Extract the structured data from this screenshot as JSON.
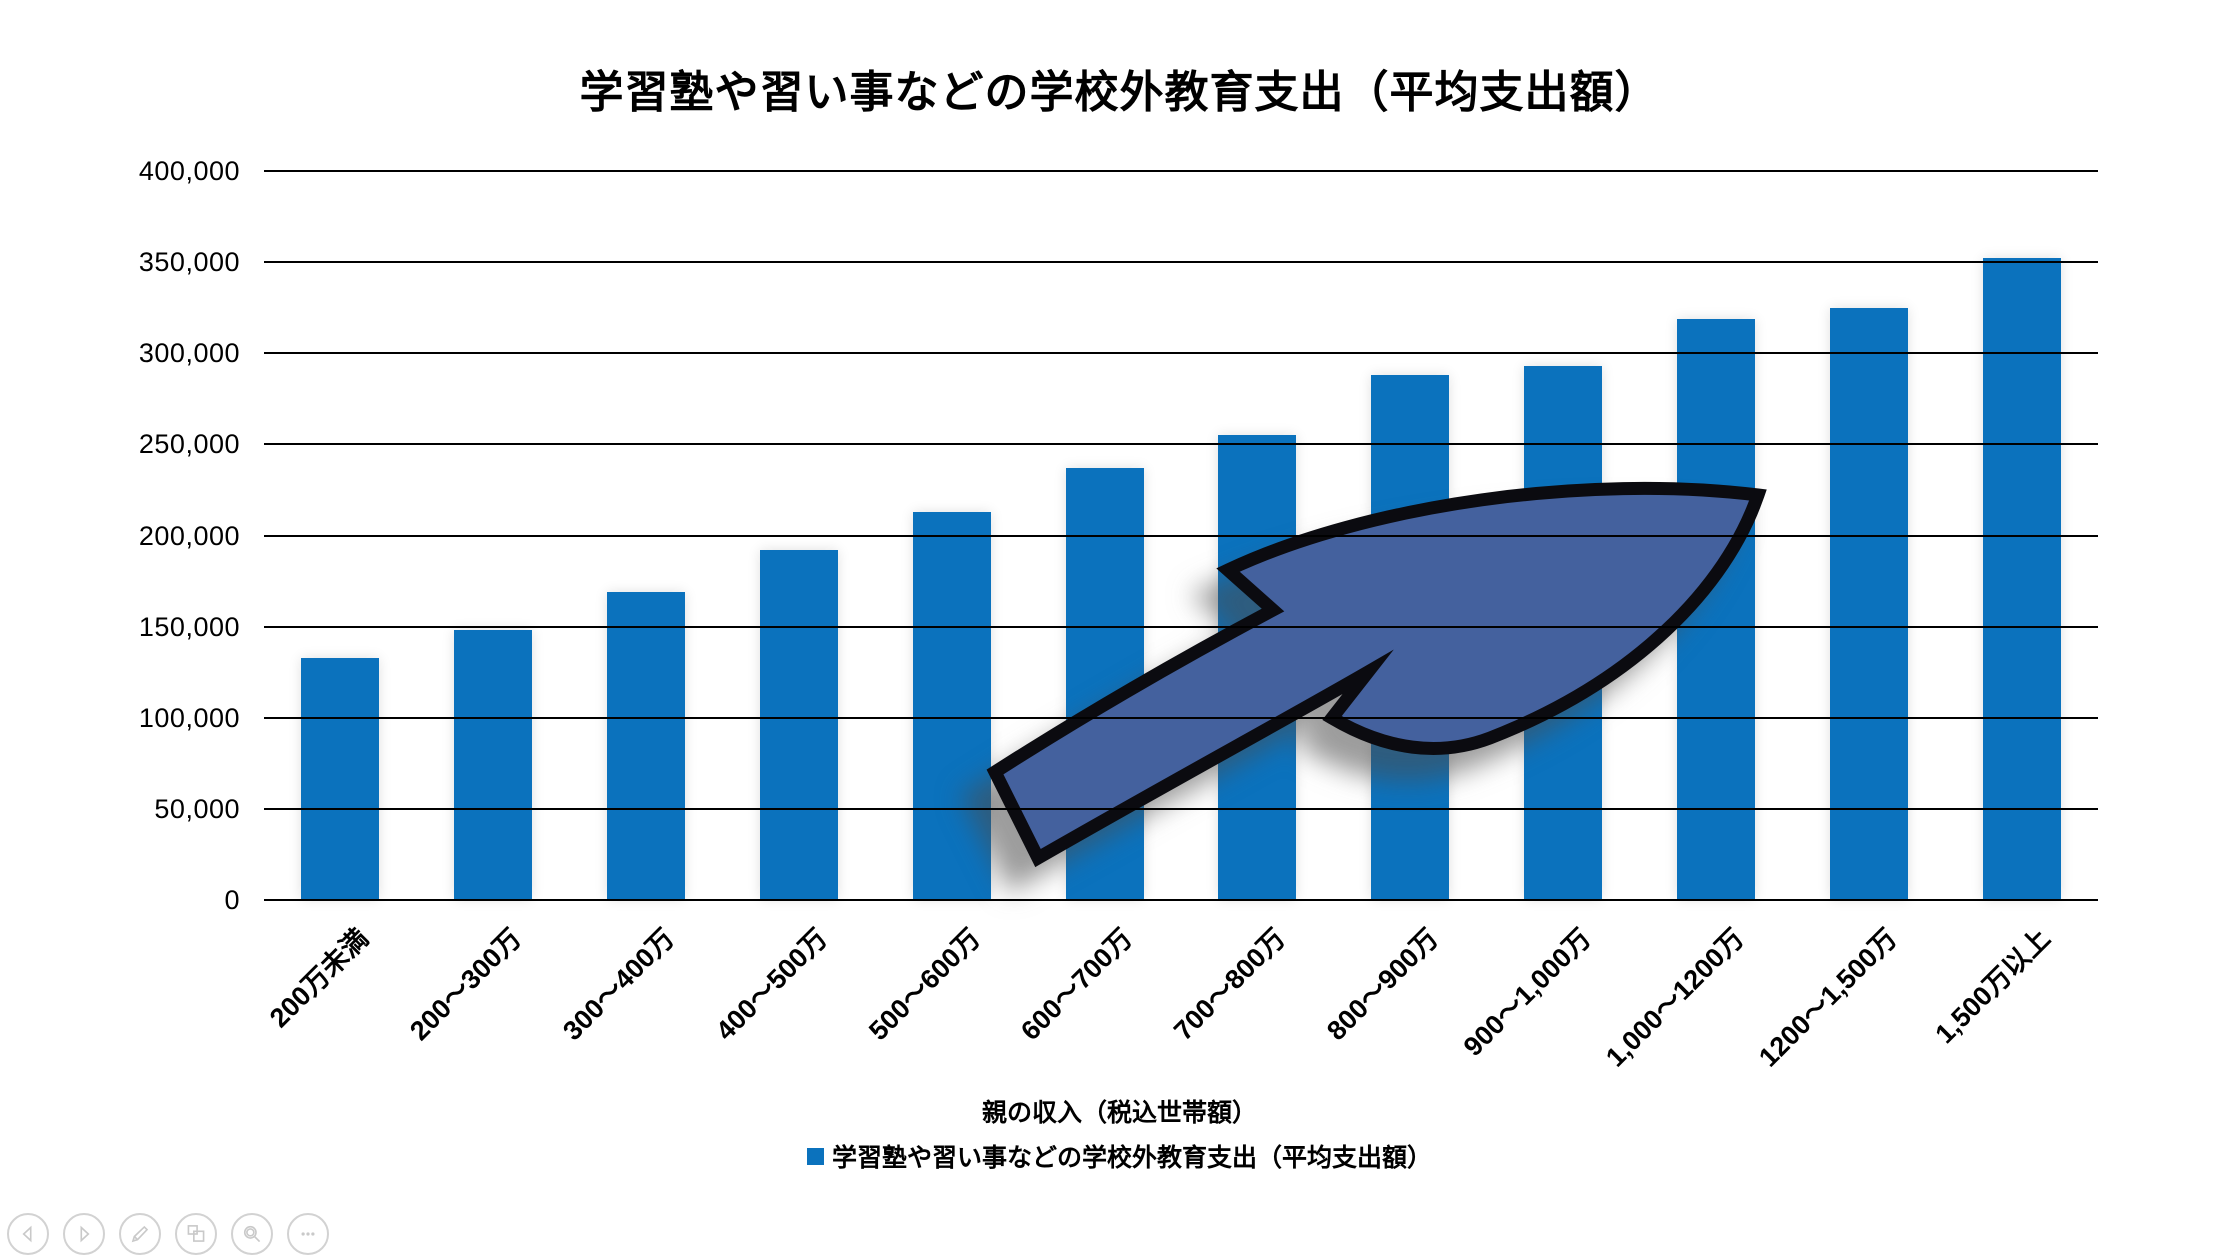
{
  "slide": {
    "title": "学習塾や習い事などの学校外教育支出（平均支出額）"
  },
  "chart_data": {
    "type": "bar",
    "title": "学習塾や習い事などの学校外教育支出（平均支出額）",
    "categories": [
      "200万未満",
      "200～300万",
      "300～400万",
      "400～500万",
      "500～600万",
      "600～700万",
      "700～800万",
      "800～900万",
      "900～1,000万",
      "1,000～1200万",
      "1200～1,500万",
      "1,500万以上"
    ],
    "values": [
      133000,
      148000,
      169000,
      192000,
      213000,
      237000,
      255000,
      288000,
      293000,
      319000,
      325000,
      352000
    ],
    "xlabel": "親の収入（税込世帯額）",
    "ylabel": "",
    "ylim": [
      0,
      400000
    ],
    "ytick_step": 50000,
    "ytick_labels": [
      "0",
      "50,000",
      "100,000",
      "150,000",
      "200,000",
      "250,000",
      "300,000",
      "350,000",
      "400,000"
    ],
    "grid": true,
    "legend_position": "bottom",
    "legend_label": "学習塾や習い事などの学校外教育支出（平均支出額）",
    "bar_color": "#0b72bd"
  },
  "annotation": {
    "growth_arrow": {
      "description": "curved swoosh arrow pointing up-right",
      "fill": "#44619e",
      "outline": "#0b0b10"
    }
  },
  "toolbar": {
    "items": [
      {
        "name": "previous"
      },
      {
        "name": "next"
      },
      {
        "name": "pen"
      },
      {
        "name": "slides"
      },
      {
        "name": "zoom"
      },
      {
        "name": "more"
      }
    ],
    "icon_color": "#c9c9c9"
  },
  "colors": {
    "bar": "#0b72bd",
    "gridline": "#000000",
    "arrow_fill": "#44619e",
    "arrow_outline": "#0b0b10",
    "text": "#000000"
  }
}
